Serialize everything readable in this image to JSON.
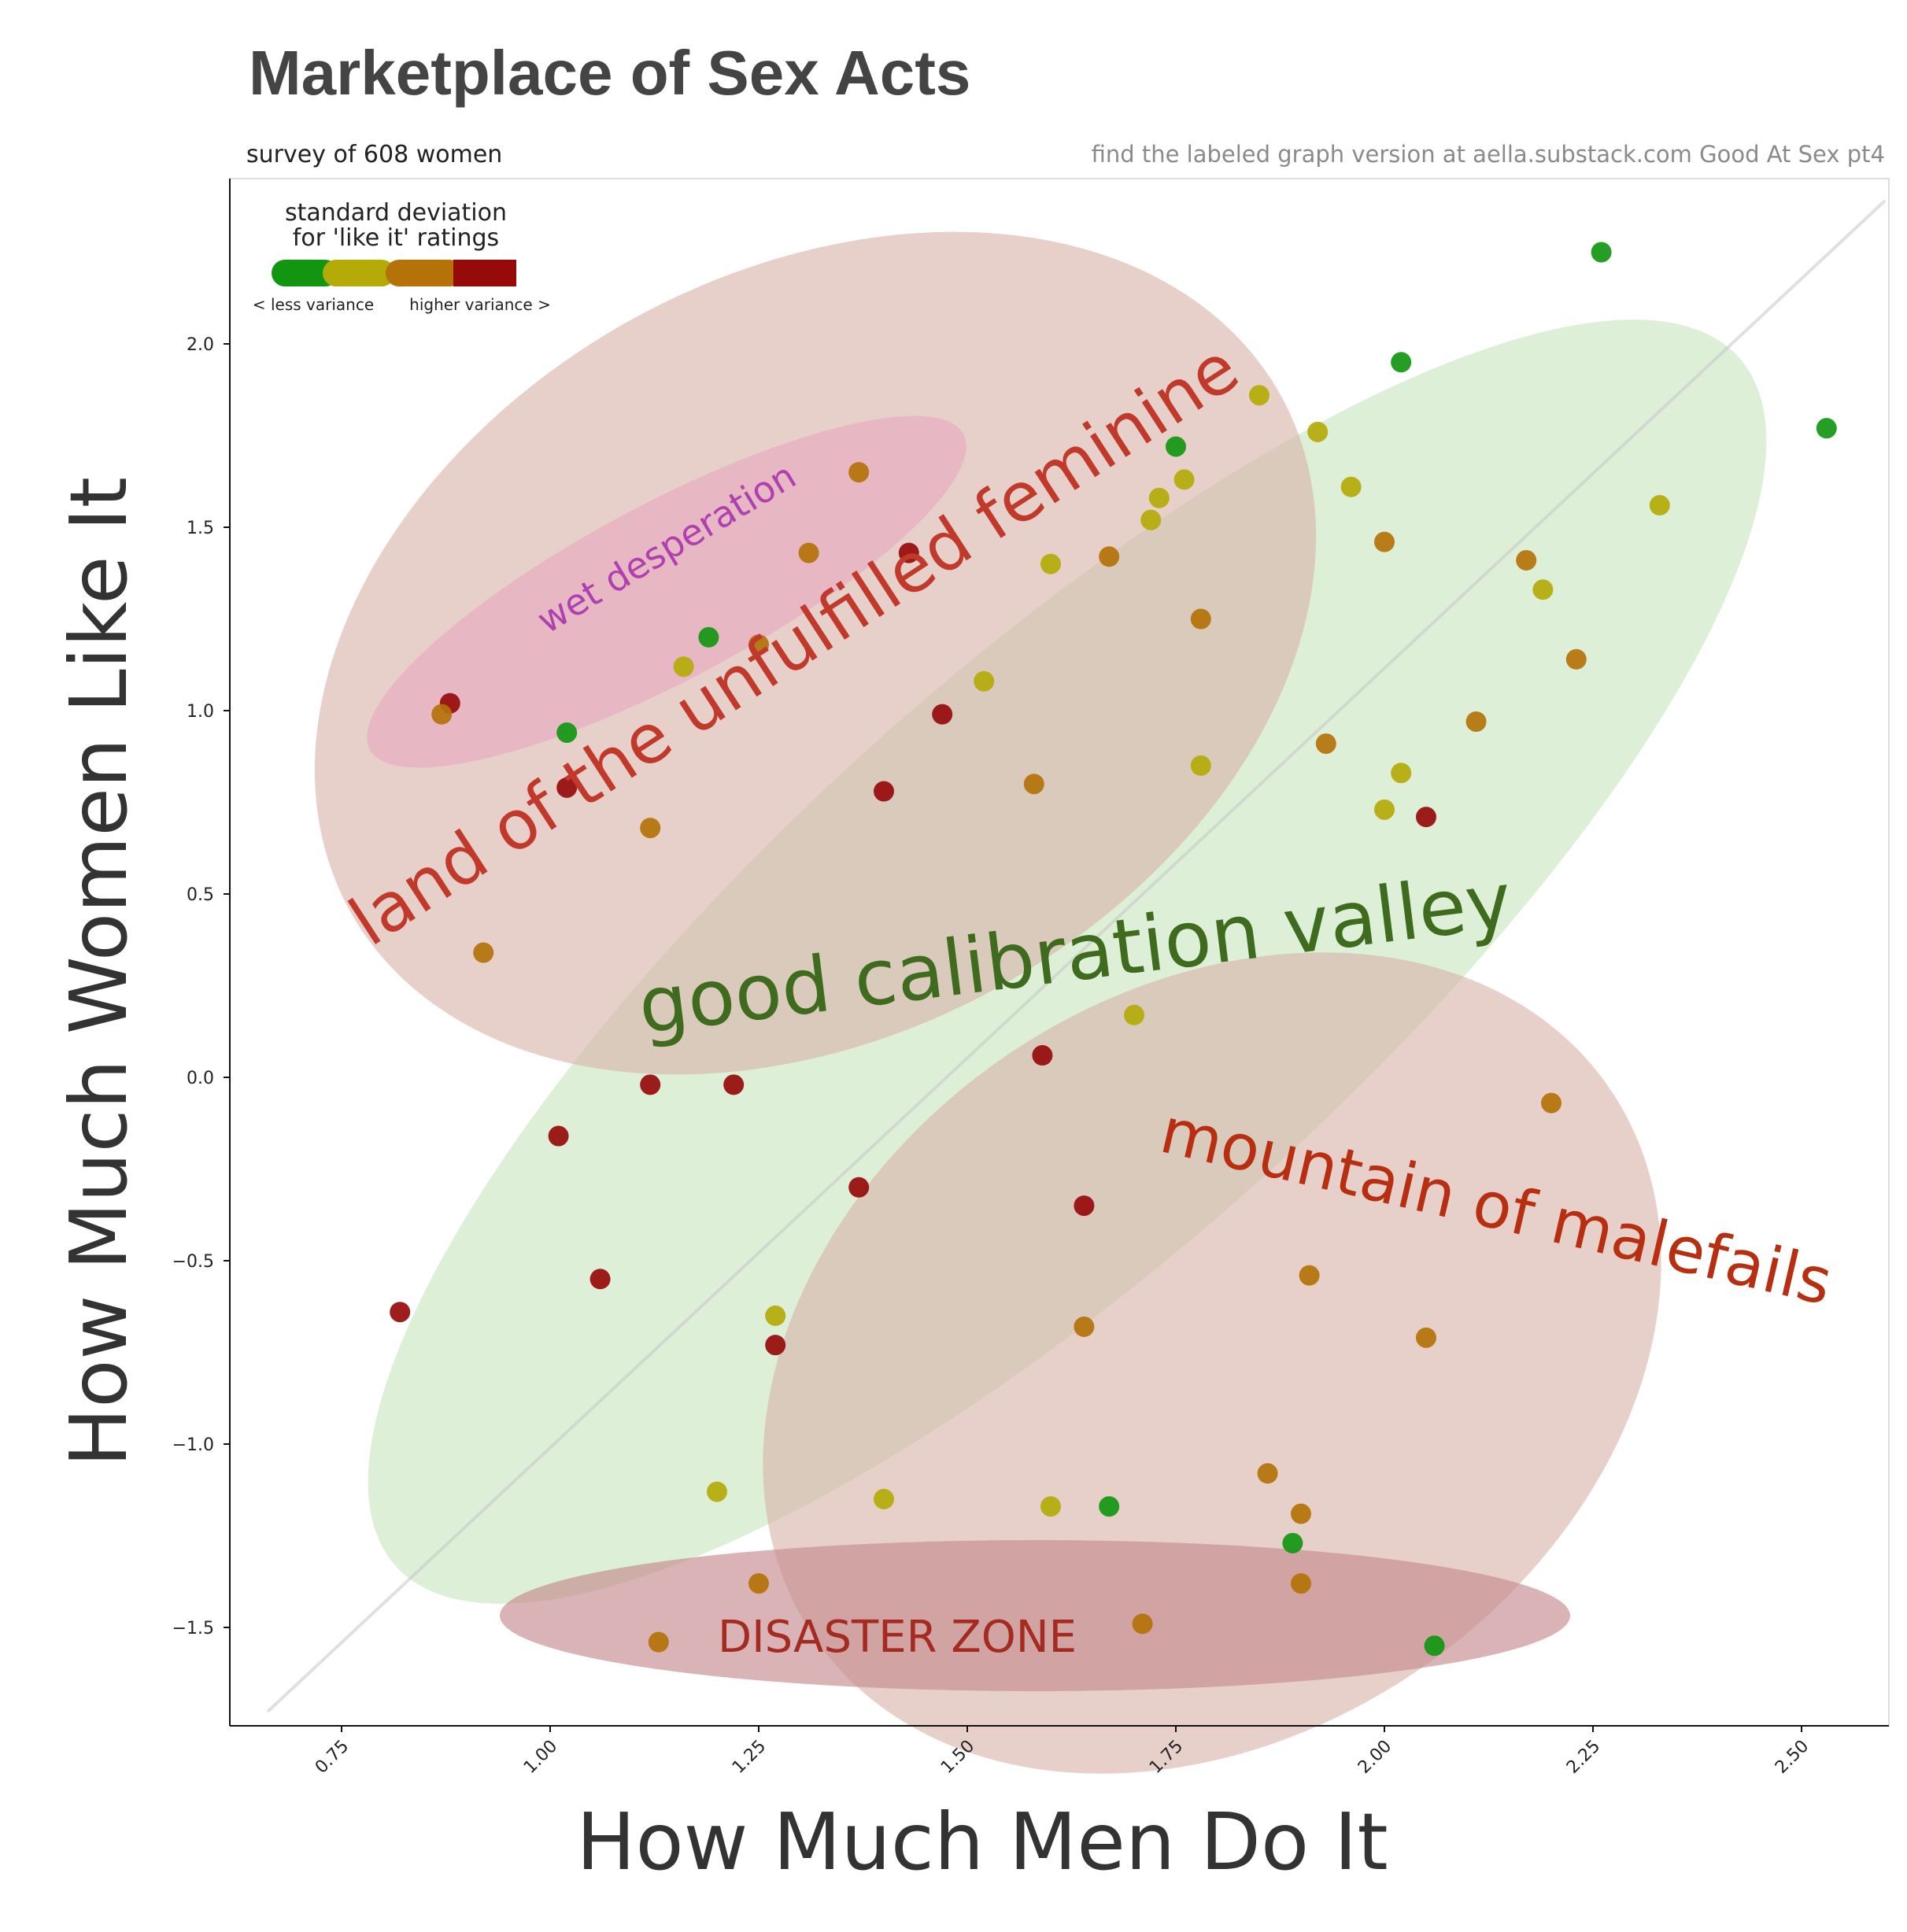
{
  "title": "Marketplace of Sex Acts",
  "subtitle": "survey of 608 women",
  "source_note": "find the labeled graph version at aella.substack.com Good At Sex pt4",
  "legend": {
    "title_line1": "standard deviation",
    "title_line2": "for 'like it' ratings",
    "left_label": "< less variance",
    "right_label": "higher variance >",
    "colors": [
      "#129612",
      "#b4aa08",
      "#b47208",
      "#960a0a"
    ]
  },
  "regions": [
    {
      "key": "good",
      "label": "good calibration valley",
      "fill": "#cfe9c6",
      "text_color": "#3f6b1e"
    },
    {
      "key": "land",
      "label": "land of the unfulfilled feminine",
      "fill": "#dcb8ad",
      "text_color": "#c0392b"
    },
    {
      "key": "wet",
      "label": "wet desperation",
      "fill": "#e6a9c1",
      "text_color": "#b03fb0"
    },
    {
      "key": "mountain",
      "label": "mountain of malefails",
      "fill": "#dcb8ad",
      "text_color": "#b82e10"
    },
    {
      "key": "disaster",
      "label": "DISASTER ZONE",
      "fill": "#c48a8e",
      "text_color": "#a52a20"
    }
  ],
  "chart_data": {
    "type": "scatter",
    "title": "Marketplace of Sex Acts",
    "xlabel": "How Much Men Do It",
    "ylabel": "How Much Women Like It",
    "xlim": [
      0.66,
      2.66
    ],
    "ylim": [
      -1.76,
      2.45
    ],
    "xticks": [
      "0.75",
      "1.00",
      "1.25",
      "1.50",
      "1.75",
      "2.00",
      "2.25",
      "2.50"
    ],
    "yticks": [
      "2.0",
      "1.5",
      "1.0",
      "0.5",
      "0.0",
      "−0.5",
      "−1.0",
      "−1.5"
    ],
    "grid": false,
    "reference_line": "diagonal y = x trend",
    "color_encoding": "standard deviation of 'like it' ratings (0 = low, 3 = high)",
    "points": [
      {
        "x": 2.26,
        "y": 2.25,
        "c": 0
      },
      {
        "x": 2.02,
        "y": 1.95,
        "c": 0
      },
      {
        "x": 2.53,
        "y": 1.77,
        "c": 0
      },
      {
        "x": 1.75,
        "y": 1.72,
        "c": 0
      },
      {
        "x": 1.85,
        "y": 1.86,
        "c": 1
      },
      {
        "x": 1.92,
        "y": 1.76,
        "c": 1
      },
      {
        "x": 1.37,
        "y": 1.65,
        "c": 2
      },
      {
        "x": 1.76,
        "y": 1.63,
        "c": 1
      },
      {
        "x": 1.96,
        "y": 1.61,
        "c": 1
      },
      {
        "x": 1.73,
        "y": 1.58,
        "c": 1
      },
      {
        "x": 2.33,
        "y": 1.56,
        "c": 1
      },
      {
        "x": 1.72,
        "y": 1.52,
        "c": 1
      },
      {
        "x": 2.0,
        "y": 1.46,
        "c": 2
      },
      {
        "x": 1.31,
        "y": 1.43,
        "c": 2
      },
      {
        "x": 1.43,
        "y": 1.43,
        "c": 3
      },
      {
        "x": 1.67,
        "y": 1.42,
        "c": 2
      },
      {
        "x": 2.17,
        "y": 1.41,
        "c": 2
      },
      {
        "x": 1.6,
        "y": 1.4,
        "c": 1
      },
      {
        "x": 2.19,
        "y": 1.33,
        "c": 1
      },
      {
        "x": 1.78,
        "y": 1.25,
        "c": 2
      },
      {
        "x": 1.19,
        "y": 1.2,
        "c": 0
      },
      {
        "x": 1.25,
        "y": 1.18,
        "c": 2
      },
      {
        "x": 2.23,
        "y": 1.14,
        "c": 2
      },
      {
        "x": 1.16,
        "y": 1.12,
        "c": 1
      },
      {
        "x": 1.52,
        "y": 1.08,
        "c": 1
      },
      {
        "x": 0.88,
        "y": 1.02,
        "c": 3
      },
      {
        "x": 0.87,
        "y": 0.99,
        "c": 2
      },
      {
        "x": 1.47,
        "y": 0.99,
        "c": 3
      },
      {
        "x": 2.11,
        "y": 0.97,
        "c": 2
      },
      {
        "x": 1.02,
        "y": 0.94,
        "c": 0
      },
      {
        "x": 1.93,
        "y": 0.91,
        "c": 2
      },
      {
        "x": 1.78,
        "y": 0.85,
        "c": 1
      },
      {
        "x": 2.02,
        "y": 0.83,
        "c": 1
      },
      {
        "x": 1.58,
        "y": 0.8,
        "c": 2
      },
      {
        "x": 1.02,
        "y": 0.79,
        "c": 3
      },
      {
        "x": 1.4,
        "y": 0.78,
        "c": 3
      },
      {
        "x": 2.0,
        "y": 0.73,
        "c": 1
      },
      {
        "x": 2.05,
        "y": 0.71,
        "c": 3
      },
      {
        "x": 1.12,
        "y": 0.68,
        "c": 2
      },
      {
        "x": 0.92,
        "y": 0.34,
        "c": 2
      },
      {
        "x": 1.7,
        "y": 0.17,
        "c": 1
      },
      {
        "x": 1.59,
        "y": 0.06,
        "c": 3
      },
      {
        "x": 1.12,
        "y": -0.02,
        "c": 3
      },
      {
        "x": 1.22,
        "y": -0.02,
        "c": 3
      },
      {
        "x": 2.2,
        "y": -0.07,
        "c": 2
      },
      {
        "x": 1.01,
        "y": -0.16,
        "c": 3
      },
      {
        "x": 1.37,
        "y": -0.3,
        "c": 3
      },
      {
        "x": 1.64,
        "y": -0.35,
        "c": 3
      },
      {
        "x": 1.91,
        "y": -0.54,
        "c": 2
      },
      {
        "x": 1.06,
        "y": -0.55,
        "c": 3
      },
      {
        "x": 0.82,
        "y": -0.64,
        "c": 3
      },
      {
        "x": 1.27,
        "y": -0.65,
        "c": 1
      },
      {
        "x": 1.64,
        "y": -0.68,
        "c": 2
      },
      {
        "x": 2.05,
        "y": -0.71,
        "c": 2
      },
      {
        "x": 1.27,
        "y": -0.73,
        "c": 3
      },
      {
        "x": 1.86,
        "y": -1.08,
        "c": 2
      },
      {
        "x": 1.2,
        "y": -1.13,
        "c": 1
      },
      {
        "x": 1.4,
        "y": -1.15,
        "c": 1
      },
      {
        "x": 1.6,
        "y": -1.17,
        "c": 1
      },
      {
        "x": 1.67,
        "y": -1.17,
        "c": 0
      },
      {
        "x": 1.9,
        "y": -1.19,
        "c": 2
      },
      {
        "x": 1.89,
        "y": -1.27,
        "c": 0
      },
      {
        "x": 1.25,
        "y": -1.38,
        "c": 2
      },
      {
        "x": 1.9,
        "y": -1.38,
        "c": 2
      },
      {
        "x": 1.71,
        "y": -1.49,
        "c": 2
      },
      {
        "x": 1.13,
        "y": -1.54,
        "c": 2
      },
      {
        "x": 2.06,
        "y": -1.55,
        "c": 0
      }
    ]
  }
}
